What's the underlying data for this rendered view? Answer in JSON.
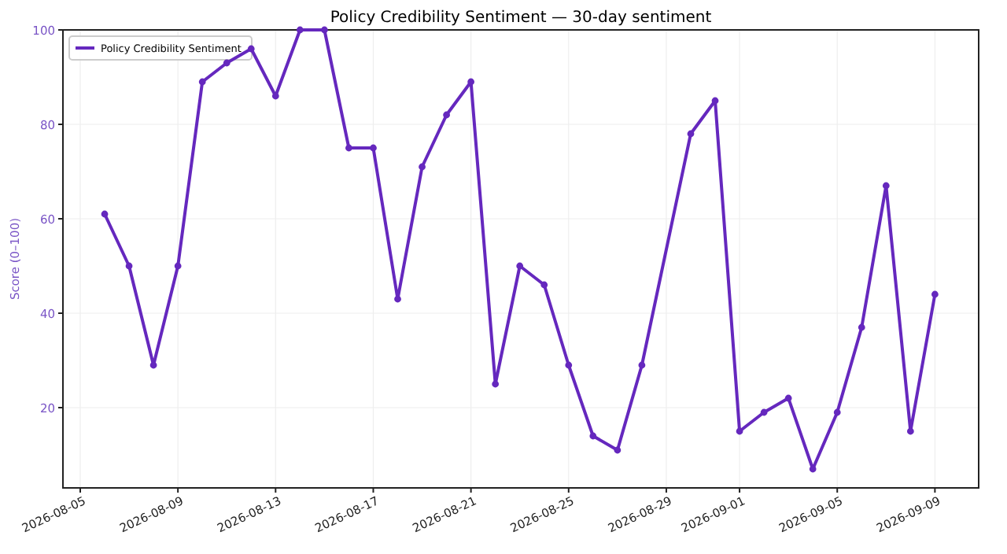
{
  "chart_data": {
    "type": "line",
    "title": "Policy Credibility Sentiment — 30-day sentiment",
    "ylabel": "Score (0–100)",
    "x": [
      "2026-08-06",
      "2026-08-07",
      "2026-08-08",
      "2026-08-09",
      "2026-08-10",
      "2026-08-11",
      "2026-08-12",
      "2026-08-13",
      "2026-08-14",
      "2026-08-15",
      "2026-08-16",
      "2026-08-17",
      "2026-08-18",
      "2026-08-19",
      "2026-08-20",
      "2026-08-21",
      "2026-08-22",
      "2026-08-23",
      "2026-08-24",
      "2026-08-25",
      "2026-08-26",
      "2026-08-27",
      "2026-08-28",
      "2026-08-30",
      "2026-08-31",
      "2026-09-01",
      "2026-09-02",
      "2026-09-03",
      "2026-09-04",
      "2026-09-05",
      "2026-09-06",
      "2026-09-07",
      "2026-09-08",
      "2026-09-09"
    ],
    "series": [
      {
        "name": "Policy Credibility Sentiment",
        "color": "#6528be",
        "values": [
          61,
          50,
          29,
          50,
          89,
          93,
          96,
          86,
          100,
          100,
          75,
          75,
          43,
          71,
          82,
          89,
          25,
          50,
          46,
          29,
          14,
          11,
          29,
          78,
          85,
          15,
          19,
          22,
          7,
          19,
          37,
          67,
          15,
          44
        ]
      }
    ],
    "xlim": [
      "2026-08-04T07:00",
      "2026-09-10T19:00"
    ],
    "ylim": [
      3,
      100
    ],
    "xticks": [
      {
        "value": "2026-08-05",
        "label": "2026-08-05"
      },
      {
        "value": "2026-08-09",
        "label": "2026-08-09"
      },
      {
        "value": "2026-08-13",
        "label": "2026-08-13"
      },
      {
        "value": "2026-08-17",
        "label": "2026-08-17"
      },
      {
        "value": "2026-08-21",
        "label": "2026-08-21"
      },
      {
        "value": "2026-08-25",
        "label": "2026-08-25"
      },
      {
        "value": "2026-08-29",
        "label": "2026-08-29"
      },
      {
        "value": "2026-09-01",
        "label": "2026-09-01"
      },
      {
        "value": "2026-09-05",
        "label": "2026-09-05"
      },
      {
        "value": "2026-09-09",
        "label": "2026-09-09"
      }
    ],
    "yticks": [
      20,
      40,
      60,
      80,
      100
    ],
    "grid": true,
    "legend": "top left",
    "marker": "circle",
    "line_style": "solid"
  }
}
